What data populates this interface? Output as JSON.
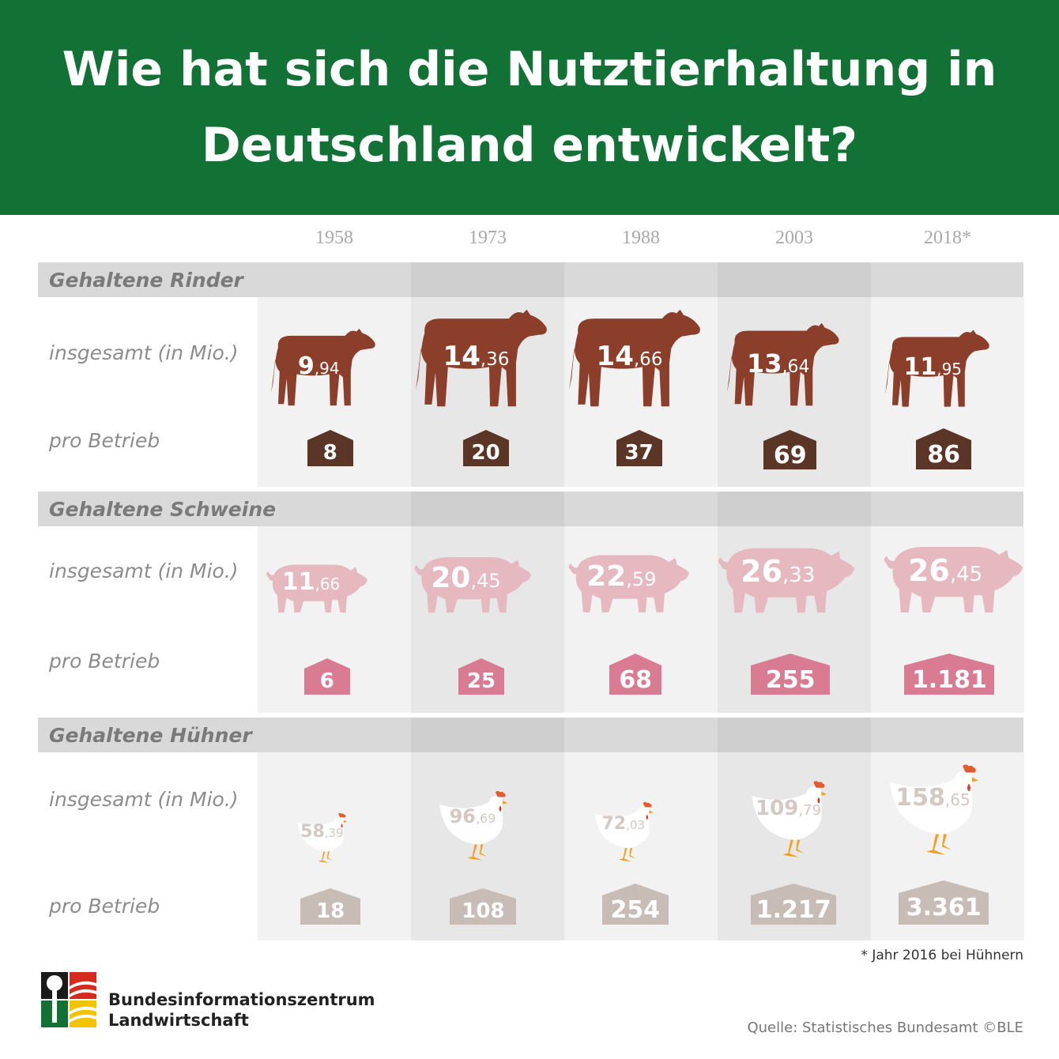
{
  "title": "Wie hat sich die Nutztierhaltung in Deutschland entwickelt?",
  "years": [
    "1958",
    "1973",
    "1988",
    "2003",
    "2018*"
  ],
  "colors": {
    "header": "#127135",
    "rinder": "#8b3f2a",
    "rinder_house": "#5b3526",
    "schweine": "#e6b9c1",
    "schweine_house": "#d97b93",
    "huehner": "#ffffff",
    "huehner_house": "#c8bdb6"
  },
  "chart_data": {
    "type": "table",
    "title": "Wie hat sich die Nutztierhaltung in Deutschland entwickelt?",
    "categories": [
      "1958",
      "1973",
      "1988",
      "2003",
      "2018*"
    ],
    "sections": [
      {
        "name": "Gehaltene Rinder",
        "total_label": "insgesamt (in Mio.)",
        "per_label": "pro Betrieb",
        "total_int": [
          "9",
          "14",
          "14",
          "13",
          "11"
        ],
        "total_dec": [
          ",94",
          ",36",
          ",66",
          ",64",
          ",95"
        ],
        "total_values": [
          9.94,
          14.36,
          14.66,
          13.64,
          11.95
        ],
        "per_farm": [
          "8",
          "20",
          "37",
          "69",
          "86"
        ],
        "per_farm_values": [
          8,
          20,
          37,
          69,
          86
        ]
      },
      {
        "name": "Gehaltene Schweine",
        "total_label": "insgesamt (in Mio.)",
        "per_label": "pro Betrieb",
        "total_int": [
          "11",
          "20",
          "22",
          "26",
          "26"
        ],
        "total_dec": [
          ",66",
          ",45",
          ",59",
          ",33",
          ",45"
        ],
        "total_values": [
          11.66,
          20.45,
          22.59,
          26.33,
          26.45
        ],
        "per_farm": [
          "6",
          "25",
          "68",
          "255",
          "1.181"
        ],
        "per_farm_values": [
          6,
          25,
          68,
          255,
          1181
        ]
      },
      {
        "name": "Gehaltene Hühner",
        "total_label": "insgesamt (in Mio.)",
        "per_label": "pro Betrieb",
        "total_int": [
          "58",
          "96",
          "72",
          "109",
          "158"
        ],
        "total_dec": [
          ",39",
          ",69",
          ",03",
          ",79",
          ",65"
        ],
        "total_values": [
          58.39,
          96.69,
          72.03,
          109.79,
          158.65
        ],
        "per_farm": [
          "18",
          "108",
          "254",
          "1.217",
          "3.361"
        ],
        "per_farm_values": [
          18,
          108,
          254,
          1217,
          3361
        ]
      }
    ]
  },
  "footnote": "* Jahr 2016 bei Hühnern",
  "source": "Quelle: Statistisches Bundesamt ©BLE",
  "logo": {
    "line1": "Bundesinformationszentrum",
    "line2": "Landwirtschaft"
  }
}
